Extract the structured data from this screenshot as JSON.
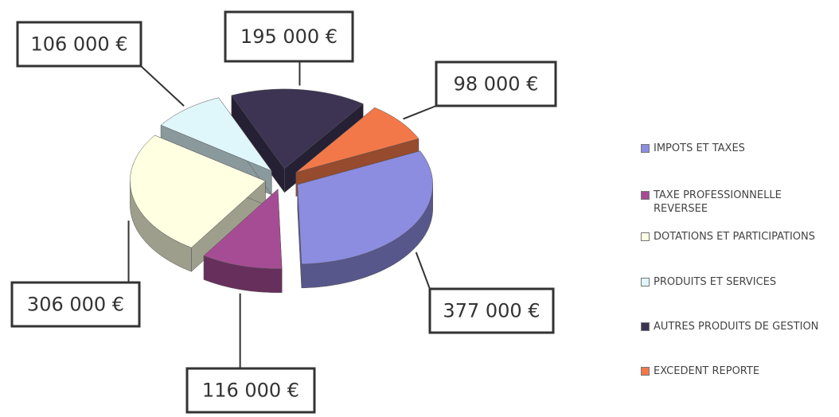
{
  "chart_data": {
    "type": "pie",
    "categories": [
      "IMPOTS ET TAXES",
      "TAXE PROFESSIONNELLE REVERSEE",
      "DOTATIONS ET PARTICIPATIONS",
      "PRODUITS ET SERVICES",
      "AUTRES PRODUITS DE GESTION",
      "EXCEDENT REPORTE"
    ],
    "values": [
      377000,
      116000,
      306000,
      106000,
      195000,
      98000
    ],
    "value_labels": [
      "377 000 €",
      "116 000 €",
      "306 000 €",
      "106 000 €",
      "195 000 €",
      "98 000 €"
    ],
    "colors": [
      "#8c8ce0",
      "#a64c94",
      "#ffffe2",
      "#dff6fb",
      "#3c3452",
      "#f2784a"
    ],
    "legend": "right"
  }
}
